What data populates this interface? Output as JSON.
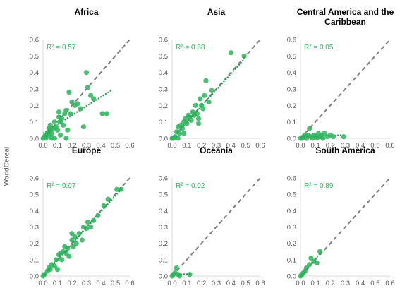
{
  "ylabel": "WorldCereal",
  "colors": {
    "points": "#2bb35c",
    "trend": "#1a9e48",
    "identity": "#808080",
    "r2_text": "#2bb35c",
    "axis": "#d9d9d9",
    "tick_text": "#595959"
  },
  "chart_data": [
    {
      "type": "scatter",
      "title": "Africa",
      "r2_label": "R² = 0.57",
      "xlim": [
        0,
        0.6
      ],
      "ylim": [
        0,
        0.6
      ],
      "xticks": [
        "0.0",
        "0.1",
        "0.2",
        "0.3",
        "0.4",
        "0.5",
        "0.6"
      ],
      "yticks": [
        "0.0",
        "0.1",
        "0.2",
        "0.3",
        "0.4",
        "0.5",
        "0.6"
      ],
      "trend": [
        [
          0.0,
          0.03
        ],
        [
          0.47,
          0.29
        ]
      ],
      "points": [
        [
          0.0,
          0.0
        ],
        [
          0.01,
          0.01
        ],
        [
          0.02,
          0.02
        ],
        [
          0.02,
          0.0
        ],
        [
          0.03,
          0.03
        ],
        [
          0.04,
          0.02
        ],
        [
          0.05,
          0.05
        ],
        [
          0.05,
          0.08
        ],
        [
          0.06,
          0.03
        ],
        [
          0.07,
          0.06
        ],
        [
          0.08,
          0.1
        ],
        [
          0.09,
          0.07
        ],
        [
          0.1,
          0.05
        ],
        [
          0.11,
          0.13
        ],
        [
          0.11,
          0.16
        ],
        [
          0.12,
          0.1
        ],
        [
          0.13,
          0.12
        ],
        [
          0.14,
          0.08
        ],
        [
          0.15,
          0.15
        ],
        [
          0.16,
          0.17
        ],
        [
          0.17,
          0.05
        ],
        [
          0.18,
          0.28
        ],
        [
          0.19,
          0.15
        ],
        [
          0.2,
          0.22
        ],
        [
          0.22,
          0.2
        ],
        [
          0.24,
          0.21
        ],
        [
          0.26,
          0.18
        ],
        [
          0.28,
          0.07
        ],
        [
          0.3,
          0.4
        ],
        [
          0.31,
          0.31
        ],
        [
          0.33,
          0.26
        ],
        [
          0.35,
          0.24
        ],
        [
          0.41,
          0.15
        ],
        [
          0.44,
          0.15
        ],
        [
          0.16,
          0.0
        ],
        [
          0.08,
          0.0
        ],
        [
          0.12,
          0.02
        ],
        [
          0.04,
          0.06
        ],
        [
          0.06,
          0.0
        ]
      ]
    },
    {
      "type": "scatter",
      "title": "Asia",
      "r2_label": "R² = 0.88",
      "xlim": [
        0,
        0.6
      ],
      "ylim": [
        0,
        0.6
      ],
      "xticks": [
        "0.0",
        "0.1",
        "0.2",
        "0.3",
        "0.4",
        "0.5",
        "0.6"
      ],
      "yticks": [
        "0.0",
        "0.1",
        "0.2",
        "0.3",
        "0.4",
        "0.5",
        "0.6"
      ],
      "trend": [
        [
          0.0,
          0.0
        ],
        [
          0.5,
          0.49
        ]
      ],
      "points": [
        [
          0.0,
          0.0
        ],
        [
          0.01,
          0.0
        ],
        [
          0.02,
          0.01
        ],
        [
          0.03,
          0.04
        ],
        [
          0.04,
          0.07
        ],
        [
          0.05,
          0.03
        ],
        [
          0.06,
          0.08
        ],
        [
          0.07,
          0.06
        ],
        [
          0.08,
          0.1
        ],
        [
          0.09,
          0.12
        ],
        [
          0.1,
          0.09
        ],
        [
          0.11,
          0.14
        ],
        [
          0.12,
          0.13
        ],
        [
          0.13,
          0.11
        ],
        [
          0.14,
          0.16
        ],
        [
          0.15,
          0.14
        ],
        [
          0.16,
          0.2
        ],
        [
          0.17,
          0.15
        ],
        [
          0.18,
          0.12
        ],
        [
          0.19,
          0.24
        ],
        [
          0.2,
          0.2
        ],
        [
          0.21,
          0.18
        ],
        [
          0.22,
          0.26
        ],
        [
          0.23,
          0.35
        ],
        [
          0.25,
          0.22
        ],
        [
          0.27,
          0.29
        ],
        [
          0.4,
          0.52
        ],
        [
          0.49,
          0.5
        ],
        [
          0.04,
          0.0
        ],
        [
          0.08,
          0.03
        ],
        [
          0.18,
          0.09
        ]
      ]
    },
    {
      "type": "scatter",
      "title": "Central America and the\nCaribbean",
      "r2_label": "R² = 0.05",
      "xlim": [
        0,
        0.6
      ],
      "ylim": [
        0,
        0.6
      ],
      "xticks": [
        "0.0",
        "0.1",
        "0.2",
        "0.3",
        "0.4",
        "0.5",
        "0.6"
      ],
      "yticks": [
        "0.0",
        "0.1",
        "0.2",
        "0.3",
        "0.4",
        "0.5",
        "0.6"
      ],
      "trend": [
        [
          0.0,
          0.01
        ],
        [
          0.29,
          0.02
        ]
      ],
      "points": [
        [
          0.0,
          0.0
        ],
        [
          0.01,
          0.0
        ],
        [
          0.02,
          0.01
        ],
        [
          0.03,
          0.02
        ],
        [
          0.04,
          0.0
        ],
        [
          0.05,
          0.02
        ],
        [
          0.06,
          0.06
        ],
        [
          0.07,
          0.01
        ],
        [
          0.08,
          0.0
        ],
        [
          0.09,
          0.02
        ],
        [
          0.1,
          0.01
        ],
        [
          0.11,
          0.0
        ],
        [
          0.12,
          0.03
        ],
        [
          0.13,
          0.01
        ],
        [
          0.14,
          0.02
        ],
        [
          0.15,
          0.0
        ],
        [
          0.16,
          0.03
        ],
        [
          0.18,
          0.01
        ],
        [
          0.2,
          0.02
        ],
        [
          0.22,
          0.01
        ],
        [
          0.29,
          0.01
        ]
      ]
    },
    {
      "type": "scatter",
      "title": "Europe",
      "r2_label": "R² = 0.97",
      "xlim": [
        0,
        0.6
      ],
      "ylim": [
        0,
        0.6
      ],
      "xticks": [
        "0.0",
        "0.1",
        "0.2",
        "0.3",
        "0.4",
        "0.5",
        "0.6"
      ],
      "yticks": [
        "0.0",
        "0.1",
        "0.2",
        "0.3",
        "0.4",
        "0.5",
        "0.6"
      ],
      "trend": [
        [
          0.0,
          0.0
        ],
        [
          0.55,
          0.54
        ]
      ],
      "points": [
        [
          0.0,
          0.0
        ],
        [
          0.01,
          0.01
        ],
        [
          0.03,
          0.03
        ],
        [
          0.04,
          0.05
        ],
        [
          0.05,
          0.04
        ],
        [
          0.06,
          0.07
        ],
        [
          0.08,
          0.06
        ],
        [
          0.09,
          0.1
        ],
        [
          0.1,
          0.04
        ],
        [
          0.11,
          0.13
        ],
        [
          0.12,
          0.14
        ],
        [
          0.13,
          0.1
        ],
        [
          0.14,
          0.15
        ],
        [
          0.15,
          0.18
        ],
        [
          0.16,
          0.14
        ],
        [
          0.17,
          0.17
        ],
        [
          0.18,
          0.12
        ],
        [
          0.2,
          0.22
        ],
        [
          0.21,
          0.18
        ],
        [
          0.22,
          0.24
        ],
        [
          0.23,
          0.2
        ],
        [
          0.25,
          0.26
        ],
        [
          0.27,
          0.22
        ],
        [
          0.28,
          0.3
        ],
        [
          0.3,
          0.29
        ],
        [
          0.31,
          0.33
        ],
        [
          0.33,
          0.3
        ],
        [
          0.35,
          0.34
        ],
        [
          0.38,
          0.37
        ],
        [
          0.42,
          0.43
        ],
        [
          0.45,
          0.47
        ],
        [
          0.51,
          0.53
        ],
        [
          0.54,
          0.53
        ],
        [
          0.2,
          0.26
        ]
      ]
    },
    {
      "type": "scatter",
      "title": "Oceania",
      "r2_label": "R² = 0.02",
      "xlim": [
        0,
        0.6
      ],
      "ylim": [
        0,
        0.6
      ],
      "xticks": [
        "0.0",
        "0.1",
        "0.2",
        "0.3",
        "0.4",
        "0.5",
        "0.6"
      ],
      "yticks": [
        "0.0",
        "0.1",
        "0.2",
        "0.3",
        "0.4",
        "0.5",
        "0.6"
      ],
      "trend": [
        [
          0.0,
          0.01
        ],
        [
          0.12,
          0.012
        ]
      ],
      "points": [
        [
          0.0,
          0.0
        ],
        [
          0.01,
          0.01
        ],
        [
          0.02,
          0.02
        ],
        [
          0.03,
          0.05
        ],
        [
          0.04,
          0.01
        ],
        [
          0.05,
          0.0
        ],
        [
          0.12,
          0.01
        ]
      ]
    },
    {
      "type": "scatter",
      "title": "South America",
      "r2_label": "R² = 0.89",
      "xlim": [
        0,
        0.6
      ],
      "ylim": [
        0,
        0.6
      ],
      "xticks": [
        "0.0",
        "0.1",
        "0.2",
        "0.3",
        "0.4",
        "0.5",
        "0.6"
      ],
      "yticks": [
        "0.0",
        "0.1",
        "0.2",
        "0.3",
        "0.4",
        "0.5",
        "0.6"
      ],
      "trend": [
        [
          0.0,
          0.0
        ],
        [
          0.14,
          0.15
        ]
      ],
      "points": [
        [
          0.0,
          0.0
        ],
        [
          0.01,
          0.01
        ],
        [
          0.02,
          0.02
        ],
        [
          0.03,
          0.03
        ],
        [
          0.04,
          0.05
        ],
        [
          0.06,
          0.07
        ],
        [
          0.07,
          0.11
        ],
        [
          0.09,
          0.09
        ],
        [
          0.11,
          0.08
        ],
        [
          0.13,
          0.15
        ]
      ]
    }
  ]
}
